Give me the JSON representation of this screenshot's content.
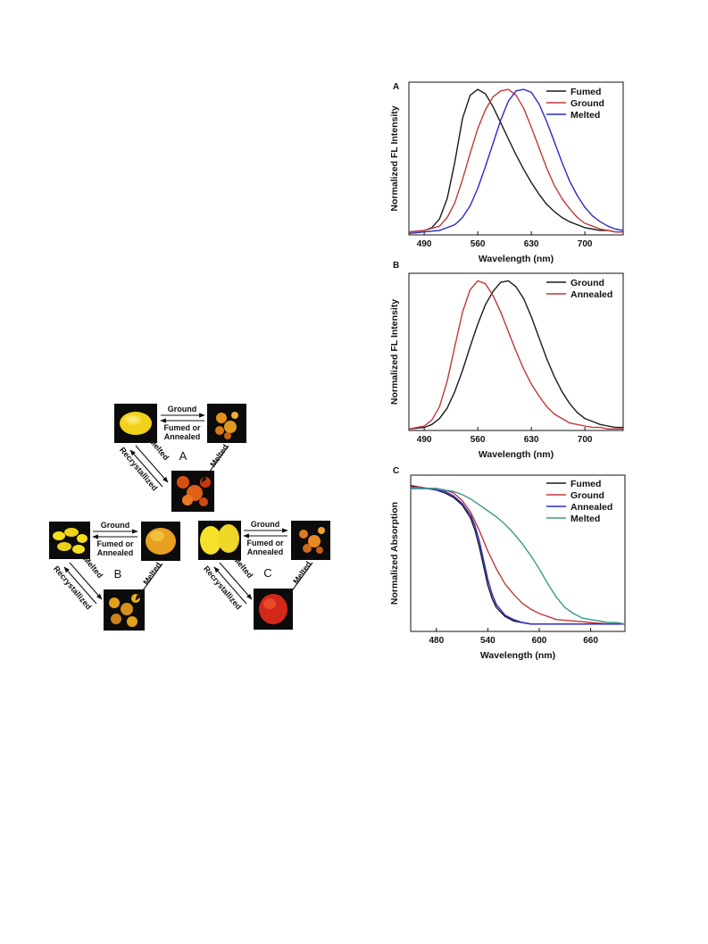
{
  "scheme": {
    "cycles": [
      {
        "letter": "A",
        "forward": "Ground",
        "reverse": "Fumed or Annealed",
        "down_right": "Melted",
        "down_left": "Melted",
        "up_left": "Recrystallized",
        "colors": {
          "top_left": "#f2d11a",
          "top_right": "#e8901c",
          "bottom": "#d94f10"
        }
      },
      {
        "letter": "B",
        "forward": "Ground",
        "reverse": "Fumed or Annealed",
        "down_right": "Melted",
        "down_left": "Melted",
        "up_left": "Recrystallized",
        "colors": {
          "top_left": "#f5de1c",
          "top_right": "#e8a020",
          "bottom": "#e0a018"
        }
      },
      {
        "letter": "C",
        "forward": "Ground",
        "reverse": "Fumed or Annealed",
        "down_right": "Melted",
        "down_left": "Melted",
        "up_left": "Recrystallized",
        "colors": {
          "top_left": "#f5e12a",
          "top_right": "#e07820",
          "bottom": "#d2281a"
        }
      }
    ]
  },
  "chart_data": [
    {
      "panel": "A",
      "type": "line",
      "xlabel": "Wavelength (nm)",
      "ylabel": "Normalized FL Intensity",
      "xlim": [
        470,
        750
      ],
      "ylim": [
        0,
        1.05
      ],
      "xticks": [
        490,
        560,
        630,
        700
      ],
      "legend_position": "top-right",
      "series": [
        {
          "name": "Fumed",
          "color": "#1a1a1a",
          "x": [
            470,
            490,
            500,
            510,
            520,
            530,
            540,
            550,
            560,
            570,
            580,
            590,
            600,
            610,
            620,
            630,
            640,
            650,
            660,
            670,
            680,
            690,
            700,
            710,
            720,
            730,
            740,
            750
          ],
          "y": [
            0.02,
            0.03,
            0.05,
            0.11,
            0.25,
            0.5,
            0.8,
            0.96,
            1.0,
            0.97,
            0.88,
            0.77,
            0.66,
            0.55,
            0.45,
            0.36,
            0.28,
            0.21,
            0.16,
            0.12,
            0.09,
            0.07,
            0.05,
            0.04,
            0.03,
            0.03,
            0.02,
            0.02
          ]
        },
        {
          "name": "Ground",
          "color": "#c0393a",
          "x": [
            470,
            490,
            510,
            520,
            530,
            540,
            550,
            560,
            570,
            580,
            590,
            600,
            610,
            620,
            630,
            640,
            650,
            660,
            670,
            680,
            690,
            700,
            710,
            720,
            730,
            740,
            750
          ],
          "y": [
            0.02,
            0.03,
            0.06,
            0.12,
            0.22,
            0.38,
            0.56,
            0.73,
            0.86,
            0.95,
            0.99,
            1.0,
            0.96,
            0.87,
            0.74,
            0.6,
            0.46,
            0.34,
            0.25,
            0.18,
            0.12,
            0.08,
            0.06,
            0.04,
            0.03,
            0.02,
            0.02
          ]
        },
        {
          "name": "Melted",
          "color": "#2a2ac8",
          "x": [
            470,
            490,
            510,
            530,
            540,
            550,
            560,
            570,
            580,
            590,
            600,
            610,
            620,
            630,
            640,
            650,
            660,
            670,
            680,
            690,
            700,
            710,
            720,
            730,
            740,
            750
          ],
          "y": [
            0.01,
            0.02,
            0.03,
            0.07,
            0.12,
            0.2,
            0.32,
            0.47,
            0.63,
            0.79,
            0.92,
            0.99,
            1.0,
            0.98,
            0.9,
            0.78,
            0.64,
            0.5,
            0.37,
            0.27,
            0.19,
            0.13,
            0.09,
            0.06,
            0.04,
            0.03
          ]
        }
      ]
    },
    {
      "panel": "B",
      "type": "line",
      "xlabel": "Wavelength (nm)",
      "ylabel": "Normalized FL Intensity",
      "xlim": [
        470,
        750
      ],
      "ylim": [
        0,
        1.05
      ],
      "xticks": [
        490,
        560,
        630,
        700
      ],
      "legend_position": "top-right",
      "series": [
        {
          "name": "Ground",
          "color": "#1a1a1a",
          "x": [
            470,
            490,
            500,
            510,
            520,
            530,
            540,
            550,
            560,
            570,
            580,
            590,
            600,
            610,
            620,
            630,
            640,
            650,
            660,
            670,
            680,
            690,
            700,
            710,
            720,
            730,
            740,
            750
          ],
          "y": [
            0.01,
            0.02,
            0.04,
            0.08,
            0.15,
            0.26,
            0.4,
            0.56,
            0.71,
            0.84,
            0.93,
            0.99,
            1.0,
            0.96,
            0.88,
            0.76,
            0.62,
            0.48,
            0.36,
            0.26,
            0.18,
            0.12,
            0.08,
            0.06,
            0.04,
            0.03,
            0.02,
            0.02
          ]
        },
        {
          "name": "Annealed",
          "color": "#c0393a",
          "x": [
            470,
            490,
            500,
            510,
            520,
            530,
            540,
            550,
            560,
            570,
            580,
            590,
            600,
            610,
            620,
            630,
            640,
            650,
            660,
            670,
            680,
            690,
            700,
            710,
            720,
            730,
            740,
            750
          ],
          "y": [
            0.01,
            0.03,
            0.07,
            0.16,
            0.33,
            0.56,
            0.79,
            0.94,
            1.0,
            0.98,
            0.9,
            0.79,
            0.66,
            0.53,
            0.41,
            0.31,
            0.23,
            0.16,
            0.11,
            0.08,
            0.05,
            0.04,
            0.03,
            0.02,
            0.02,
            0.01,
            0.01,
            0.01
          ]
        }
      ]
    },
    {
      "panel": "C",
      "type": "line",
      "xlabel": "Wavelength (nm)",
      "ylabel": "Normalized Absorption",
      "xlim": [
        450,
        700
      ],
      "ylim": [
        0,
        1.05
      ],
      "xticks": [
        480,
        540,
        600,
        660
      ],
      "legend_position": "top-right",
      "series": [
        {
          "name": "Fumed",
          "color": "#1a1a1a",
          "x": [
            450,
            460,
            470,
            480,
            490,
            500,
            510,
            520,
            525,
            530,
            535,
            540,
            545,
            550,
            560,
            570,
            580,
            590,
            600,
            620,
            640,
            660,
            680,
            700
          ],
          "y": [
            0.98,
            0.97,
            0.96,
            0.95,
            0.93,
            0.9,
            0.85,
            0.76,
            0.68,
            0.57,
            0.44,
            0.31,
            0.22,
            0.16,
            0.1,
            0.07,
            0.06,
            0.05,
            0.05,
            0.05,
            0.05,
            0.05,
            0.05,
            0.05
          ]
        },
        {
          "name": "Ground",
          "color": "#c0393a",
          "x": [
            450,
            460,
            470,
            480,
            490,
            500,
            510,
            520,
            530,
            540,
            550,
            560,
            570,
            580,
            590,
            600,
            610,
            620,
            640,
            660,
            680,
            700
          ],
          "y": [
            0.97,
            0.97,
            0.96,
            0.96,
            0.95,
            0.93,
            0.88,
            0.8,
            0.68,
            0.54,
            0.42,
            0.32,
            0.25,
            0.19,
            0.15,
            0.12,
            0.1,
            0.08,
            0.07,
            0.06,
            0.05,
            0.05
          ]
        },
        {
          "name": "Annealed",
          "color": "#2a2ac8",
          "x": [
            450,
            460,
            470,
            480,
            490,
            500,
            510,
            520,
            525,
            530,
            535,
            540,
            545,
            550,
            560,
            570,
            580,
            590,
            600,
            620,
            640,
            660,
            680,
            700
          ],
          "y": [
            0.96,
            0.96,
            0.96,
            0.95,
            0.94,
            0.91,
            0.86,
            0.78,
            0.71,
            0.61,
            0.48,
            0.35,
            0.25,
            0.18,
            0.11,
            0.08,
            0.06,
            0.05,
            0.05,
            0.05,
            0.05,
            0.05,
            0.05,
            0.05
          ]
        },
        {
          "name": "Melted",
          "color": "#3a9a8a",
          "x": [
            450,
            460,
            470,
            480,
            490,
            500,
            510,
            520,
            530,
            540,
            550,
            560,
            570,
            580,
            590,
            600,
            610,
            620,
            630,
            640,
            650,
            660,
            670,
            680,
            690,
            700
          ],
          "y": [
            0.96,
            0.96,
            0.96,
            0.96,
            0.95,
            0.94,
            0.92,
            0.89,
            0.85,
            0.81,
            0.77,
            0.72,
            0.66,
            0.59,
            0.51,
            0.42,
            0.32,
            0.23,
            0.16,
            0.12,
            0.09,
            0.08,
            0.07,
            0.06,
            0.06,
            0.05
          ]
        }
      ]
    }
  ]
}
